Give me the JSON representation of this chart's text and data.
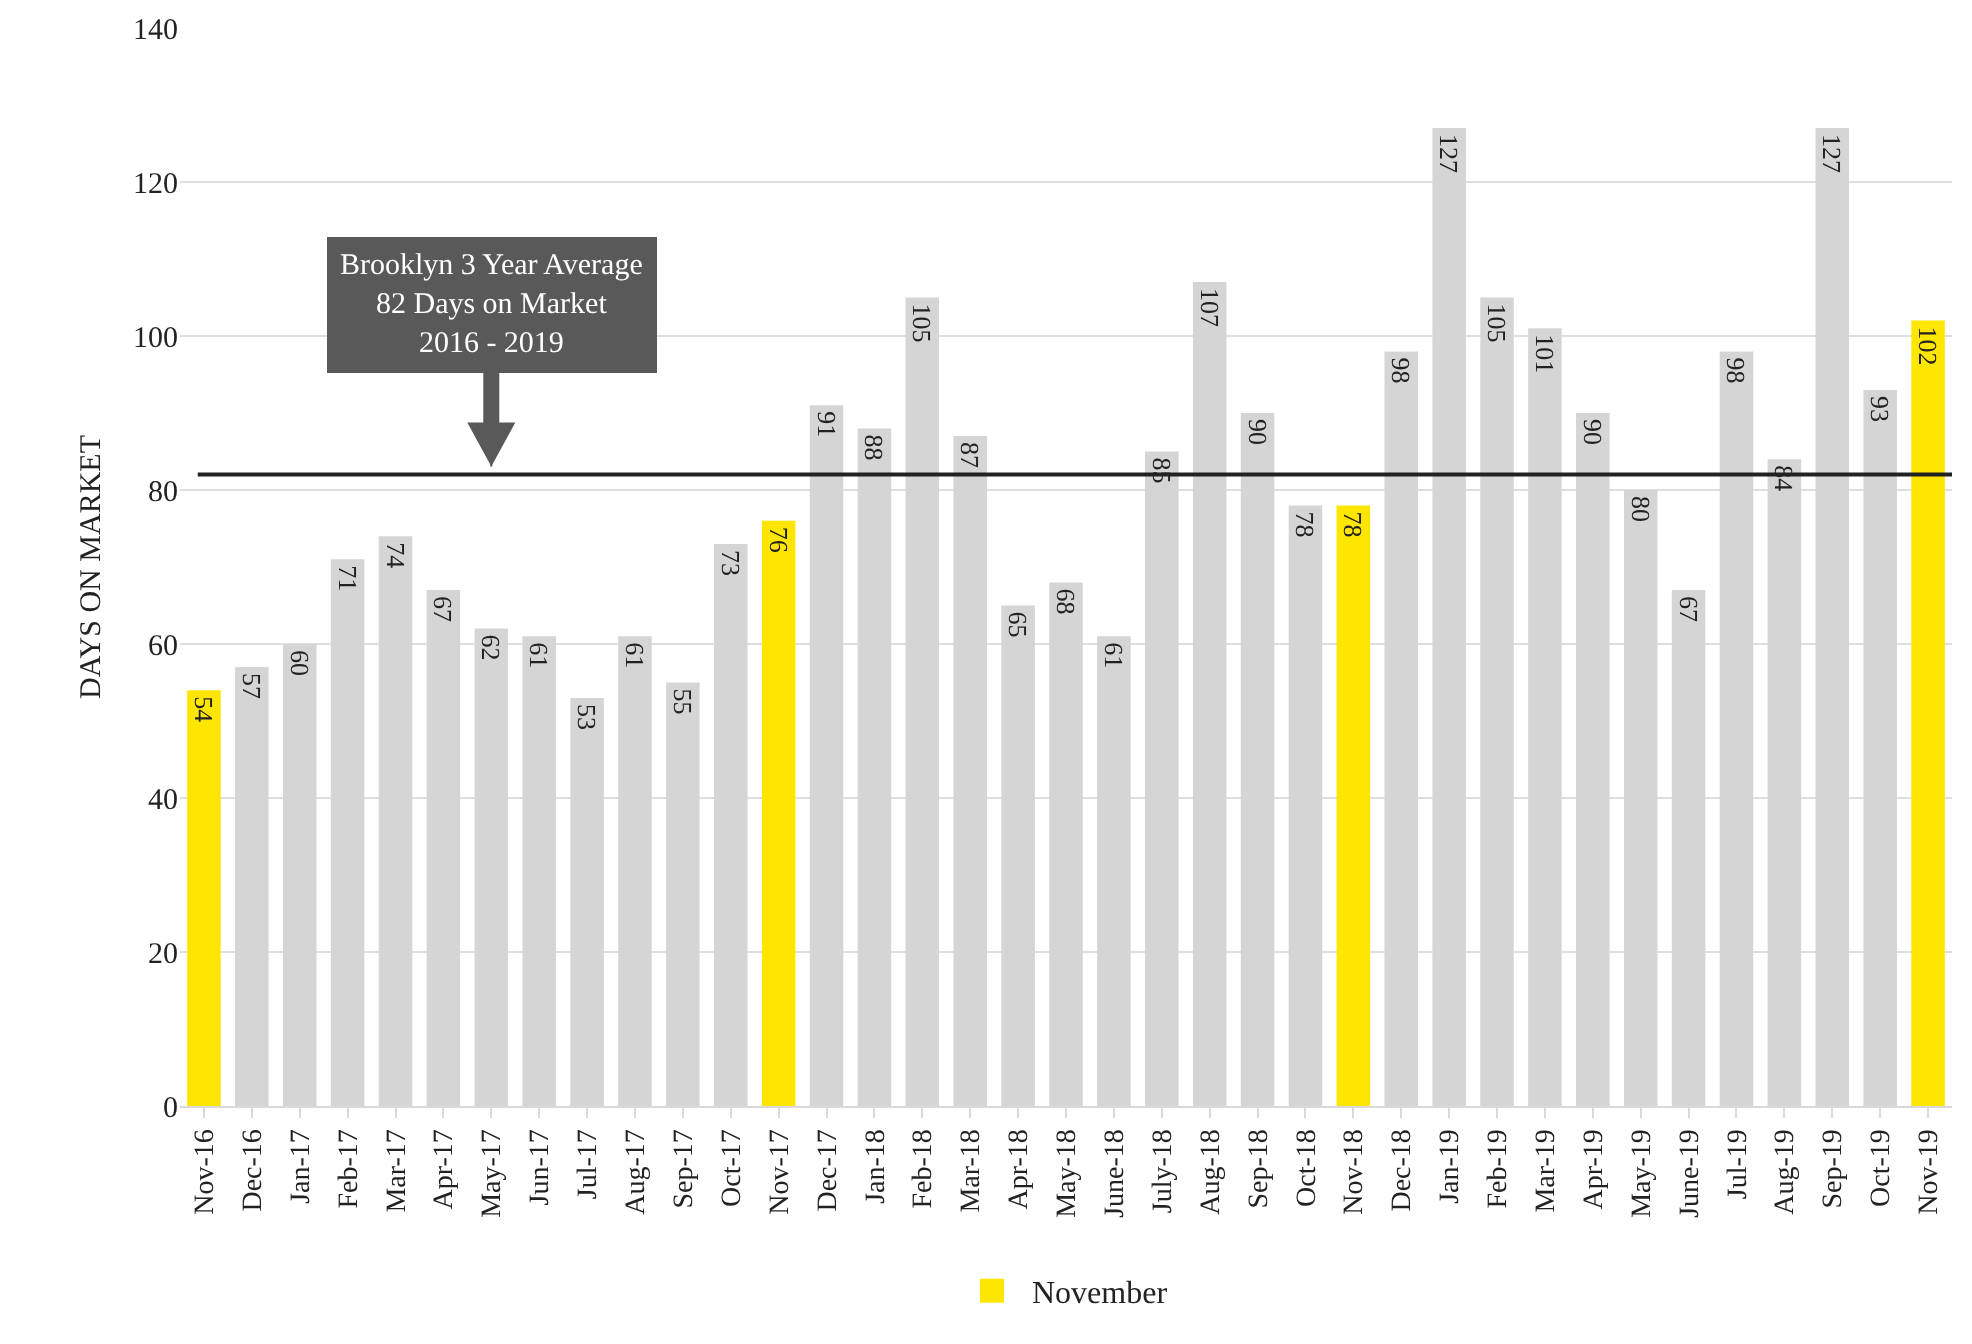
{
  "chart_data": {
    "type": "bar",
    "ylabel": "DAYS ON MARKET",
    "categories": [
      "Nov-16",
      "Dec-16",
      "Jan-17",
      "Feb-17",
      "Mar-17",
      "Apr-17",
      "May-17",
      "Jun-17",
      "Jul-17",
      "Aug-17",
      "Sep-17",
      "Oct-17",
      "Nov-17",
      "Dec-17",
      "Jan-18",
      "Feb-18",
      "Mar-18",
      "Apr-18",
      "May-18",
      "June-18",
      "July-18",
      "Aug-18",
      "Sep-18",
      "Oct-18",
      "Nov-18",
      "Dec-18",
      "Jan-19",
      "Feb-19",
      "Mar-19",
      "Apr-19",
      "May-19",
      "June-19",
      "Jul-19",
      "Aug-19",
      "Sep-19",
      "Oct-19",
      "Nov-19"
    ],
    "series": [
      {
        "name": "November",
        "color": "#ffe600",
        "values": [
          54,
          null,
          null,
          null,
          null,
          null,
          null,
          null,
          null,
          null,
          null,
          null,
          76,
          null,
          null,
          null,
          null,
          null,
          null,
          null,
          null,
          null,
          null,
          null,
          78,
          null,
          null,
          null,
          null,
          null,
          null,
          null,
          null,
          null,
          null,
          null,
          102
        ]
      },
      {
        "color": "#d6d5d5",
        "values": [
          null,
          57,
          60,
          71,
          74,
          67,
          62,
          61,
          53,
          61,
          55,
          73,
          null,
          91,
          88,
          105,
          87,
          65,
          68,
          61,
          85,
          107,
          90,
          78,
          null,
          98,
          127,
          105,
          101,
          90,
          80,
          67,
          98,
          84,
          127,
          93,
          null
        ]
      }
    ],
    "ylim": [
      0,
      140
    ],
    "yticks": [
      0,
      20,
      40,
      60,
      80,
      100,
      120,
      140
    ],
    "grid": "y",
    "legend": "bottom",
    "data_labels": true,
    "ref_lines": [
      {
        "axis": "y",
        "value": 82,
        "color": "#222222"
      }
    ],
    "annotations": [
      {
        "text": "Brooklyn 3 Year Average\n82 Days on Market\n2016 - 2019",
        "x": "May-17",
        "y": 82
      }
    ]
  }
}
